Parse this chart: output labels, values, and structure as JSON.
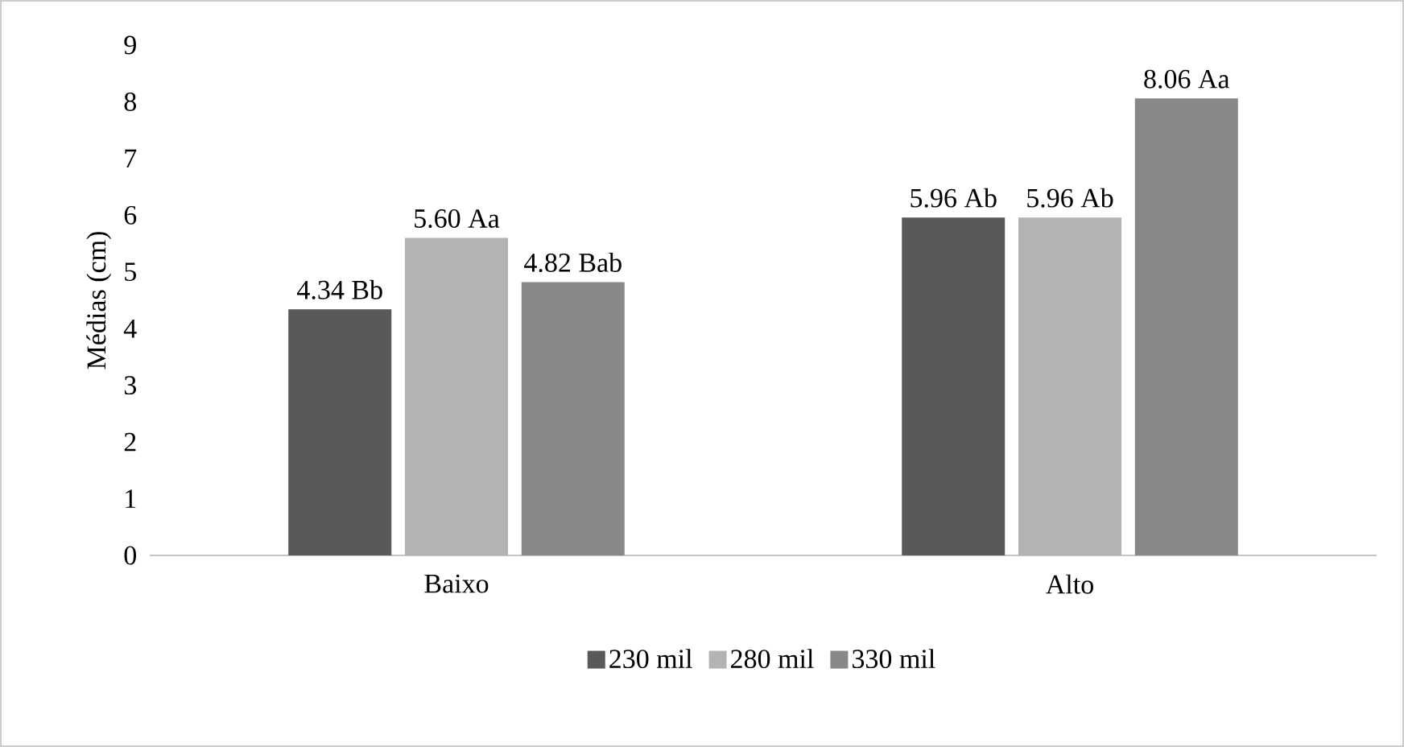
{
  "chart_data": {
    "type": "bar",
    "ylabel": "Médias (cm)",
    "categories": [
      "Baixo",
      "Alto"
    ],
    "series": [
      {
        "name": "230 mil",
        "color": "#595959",
        "values": [
          4.34,
          5.96
        ],
        "value_labels": [
          "4.34 Bb",
          "5.96 Ab"
        ]
      },
      {
        "name": "280 mil",
        "color": "#b3b3b3",
        "values": [
          5.6,
          5.96
        ],
        "value_labels": [
          "5.60 Aa",
          "5.96 Ab"
        ]
      },
      {
        "name": "330 mil",
        "color": "#888888",
        "values": [
          4.82,
          8.06
        ],
        "value_labels": [
          "4.82 Bab",
          "8.06 Aa"
        ]
      }
    ],
    "ylim": [
      0,
      9
    ],
    "yticks": [
      0,
      1,
      2,
      3,
      4,
      5,
      6,
      7,
      8,
      9
    ],
    "grid": false,
    "legend": "bottom"
  }
}
